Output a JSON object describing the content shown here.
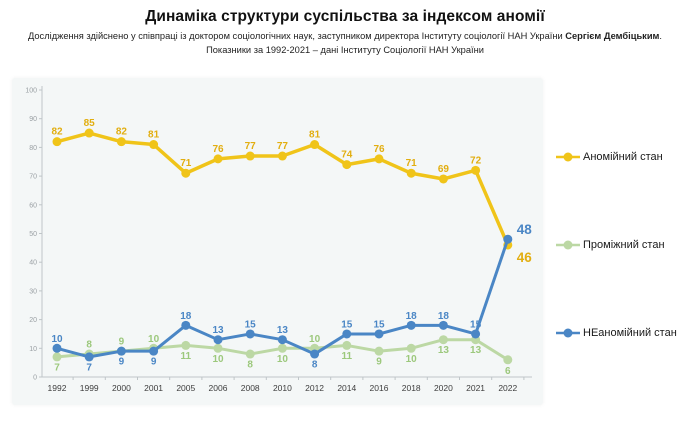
{
  "header": {
    "title": "Динаміка структури суспільства за індексом аномії",
    "subtitle_prefix": "Дослідження здійснено у співпраці із доктором соціологічних наук, заступником директора Інституту соціології НАН України ",
    "subtitle_name": "Сергієм Дембіцьким",
    "subtitle_suffix": ".",
    "subtitle_line2": "Показники за 1992-2021 – дані Інституту Соціології НАН України"
  },
  "legend": {
    "items": [
      {
        "label": "Аномійний стан",
        "color": "#f0c419"
      },
      {
        "label": "Проміжний стан",
        "color": "#bcd8a4"
      },
      {
        "label": "НЕаномійний стан",
        "color": "#4a86c5"
      }
    ]
  },
  "chart_data": {
    "type": "line",
    "categories": [
      "1992",
      "1999",
      "2000",
      "2001",
      "2005",
      "2006",
      "2008",
      "2010",
      "2012",
      "2014",
      "2016",
      "2018",
      "2020",
      "2021",
      "2022"
    ],
    "series": [
      {
        "name": "Аномійний стан",
        "color": "#f0c419",
        "label_color": "#e2ae10",
        "values": [
          82,
          85,
          82,
          81,
          71,
          76,
          77,
          77,
          81,
          74,
          76,
          71,
          69,
          72,
          46
        ]
      },
      {
        "name": "Проміжний стан",
        "color": "#bcd8a4",
        "label_color": "#9cc87c",
        "values": [
          7,
          8,
          9,
          10,
          11,
          10,
          8,
          10,
          10,
          11,
          9,
          10,
          13,
          13,
          6
        ]
      },
      {
        "name": "НЕаномійний стан",
        "color": "#4a86c5",
        "label_color": "#4a86c5",
        "values": [
          10,
          7,
          9,
          9,
          18,
          13,
          15,
          13,
          8,
          15,
          15,
          18,
          18,
          15,
          48
        ]
      }
    ],
    "title": "Динаміка структури суспільства за індексом аномії",
    "xlabel": "",
    "ylabel": "",
    "ylim": [
      0,
      100
    ],
    "yticks": [
      0,
      10,
      20,
      30,
      40,
      50,
      60,
      70,
      80,
      90,
      100
    ],
    "grid": false,
    "legend_position": "right",
    "axis_color": "#bfc5c8",
    "ytick_label_color": "#9aa0a4",
    "xtick_label_color": "#3d3d3d"
  }
}
